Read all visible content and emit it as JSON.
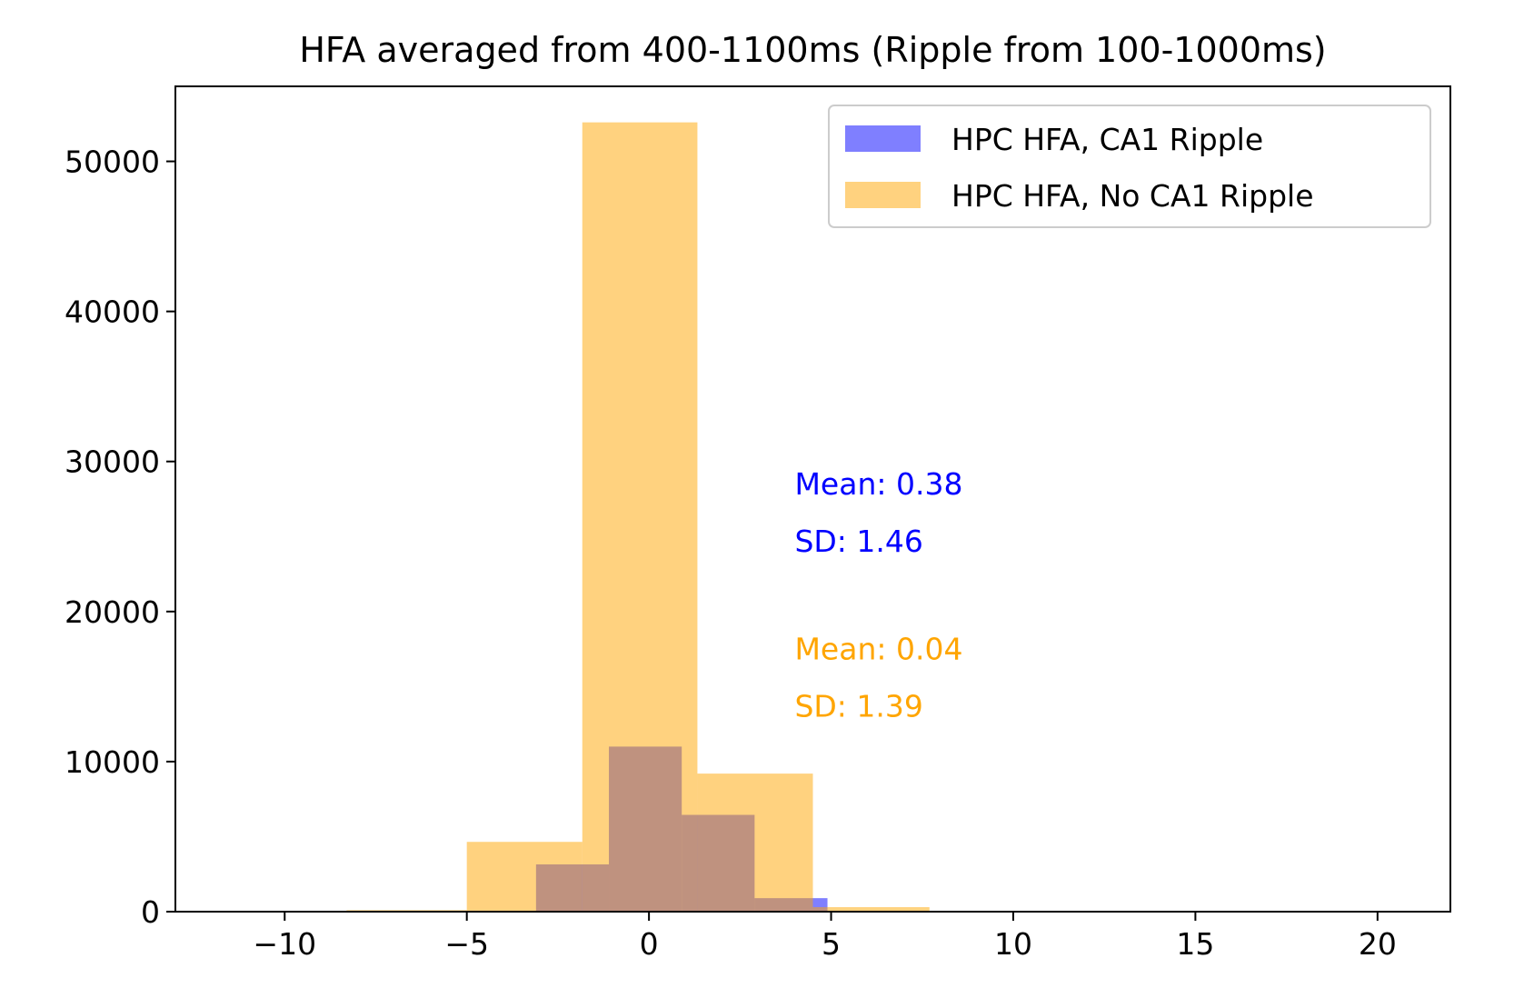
{
  "chart_data": {
    "type": "bar",
    "title": "HFA averaged from 400-1100ms (Ripple from 100-1000ms)",
    "xlabel": "",
    "ylabel": "",
    "xlim": [
      -13,
      22
    ],
    "ylim": [
      0,
      55000
    ],
    "xticks": [
      -10,
      -5,
      0,
      5,
      10,
      15,
      20
    ],
    "xtick_labels": [
      "−10",
      "−5",
      "0",
      "5",
      "10",
      "15",
      "20"
    ],
    "yticks": [
      0,
      10000,
      20000,
      30000,
      40000,
      50000
    ],
    "ytick_labels": [
      "0",
      "10000",
      "20000",
      "30000",
      "40000",
      "50000"
    ],
    "grid": false,
    "legend_position": "upper right",
    "series": [
      {
        "name": "HPC HFA, CA1 Ripple",
        "color": "#0000ff",
        "opacity": 0.5,
        "bins": [
          {
            "x0": -8.3,
            "x1": -5.1,
            "value": 50
          },
          {
            "x0": -5.1,
            "x1": -3.1,
            "value": 60
          },
          {
            "x0": -3.1,
            "x1": -1.1,
            "value": 3150
          },
          {
            "x0": -1.1,
            "x1": 0.9,
            "value": 11000
          },
          {
            "x0": 0.9,
            "x1": 2.9,
            "value": 6450
          },
          {
            "x0": 2.9,
            "x1": 4.9,
            "value": 900
          },
          {
            "x0": 4.9,
            "x1": 6.9,
            "value": 30
          }
        ]
      },
      {
        "name": "HPC HFA, No CA1 Ripple",
        "color": "#ffa500",
        "opacity": 0.5,
        "bins": [
          {
            "x0": -8.3,
            "x1": -5.0,
            "value": 100
          },
          {
            "x0": -5.0,
            "x1": -1.83,
            "value": 4650
          },
          {
            "x0": -1.83,
            "x1": 1.33,
            "value": 52600
          },
          {
            "x0": 1.33,
            "x1": 4.5,
            "value": 9200
          },
          {
            "x0": 4.5,
            "x1": 7.7,
            "value": 300
          }
        ]
      }
    ],
    "annotations": [
      {
        "text": "Mean: 0.38",
        "x": 4.0,
        "y": 27800,
        "color": "#0000ff"
      },
      {
        "text": "SD: 1.46",
        "x": 4.0,
        "y": 24000,
        "color": "#0000ff"
      },
      {
        "text": "Mean: 0.04",
        "x": 4.0,
        "y": 16800,
        "color": "#ffa500"
      },
      {
        "text": "SD: 1.39",
        "x": 4.0,
        "y": 13000,
        "color": "#ffa500"
      }
    ]
  }
}
